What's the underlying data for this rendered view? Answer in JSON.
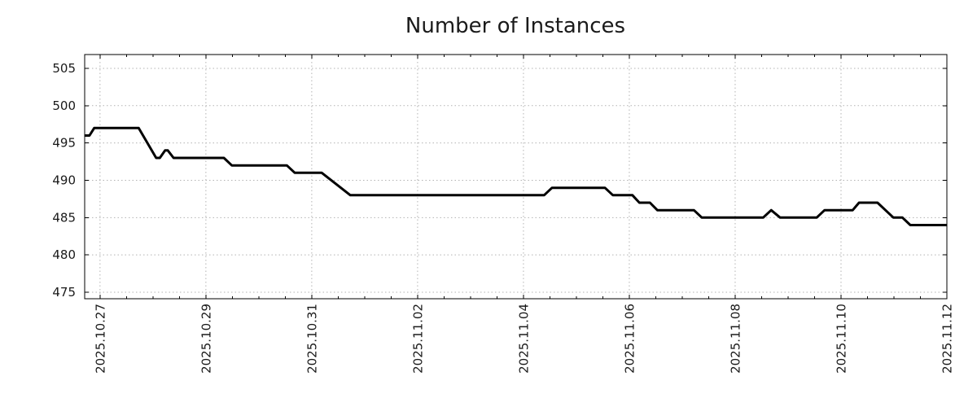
{
  "chart_data": {
    "type": "line",
    "title": "Number of Instances",
    "series_name": "instances",
    "line_color": "#000000",
    "grid_color": "#b3b3b3",
    "axis_color": "#000000",
    "text_color": "#1a1a1a",
    "legend": "none",
    "grid": "dotted",
    "x_axis": {
      "tick_labels": [
        "2025.10.27",
        "2025.10.29",
        "2025.10.31",
        "2025.11.02",
        "2025.11.04",
        "2025.11.06",
        "2025.11.08",
        "2025.11.10",
        "2025.11.12"
      ],
      "tick_positions_days": [
        0.29,
        2.29,
        4.29,
        6.29,
        8.29,
        10.29,
        12.29,
        14.29,
        16.29
      ],
      "minor_tick_step_days": 0.5,
      "span_days": 16.29
    },
    "y_axis": {
      "ticks": [
        475,
        480,
        485,
        490,
        495,
        500,
        505
      ],
      "top_value": 506.85,
      "bottom_value": 474.13
    },
    "points": [
      [
        0.0,
        496
      ],
      [
        0.09,
        496
      ],
      [
        0.18,
        497
      ],
      [
        1.02,
        497
      ],
      [
        1.35,
        493
      ],
      [
        1.42,
        493
      ],
      [
        1.52,
        494
      ],
      [
        1.57,
        494
      ],
      [
        1.68,
        493
      ],
      [
        2.63,
        493
      ],
      [
        2.78,
        492
      ],
      [
        3.82,
        492
      ],
      [
        3.97,
        491
      ],
      [
        4.48,
        491
      ],
      [
        5.02,
        488
      ],
      [
        8.68,
        488
      ],
      [
        8.83,
        489
      ],
      [
        9.83,
        489
      ],
      [
        9.98,
        488
      ],
      [
        10.35,
        488
      ],
      [
        10.48,
        487
      ],
      [
        10.68,
        487
      ],
      [
        10.82,
        486
      ],
      [
        11.51,
        486
      ],
      [
        11.66,
        485
      ],
      [
        12.82,
        485
      ],
      [
        12.97,
        486
      ],
      [
        13.14,
        485
      ],
      [
        13.83,
        485
      ],
      [
        13.98,
        486
      ],
      [
        14.51,
        486
      ],
      [
        14.63,
        487
      ],
      [
        14.98,
        487
      ],
      [
        15.28,
        485
      ],
      [
        15.45,
        485
      ],
      [
        15.6,
        484
      ],
      [
        16.29,
        484
      ]
    ]
  }
}
